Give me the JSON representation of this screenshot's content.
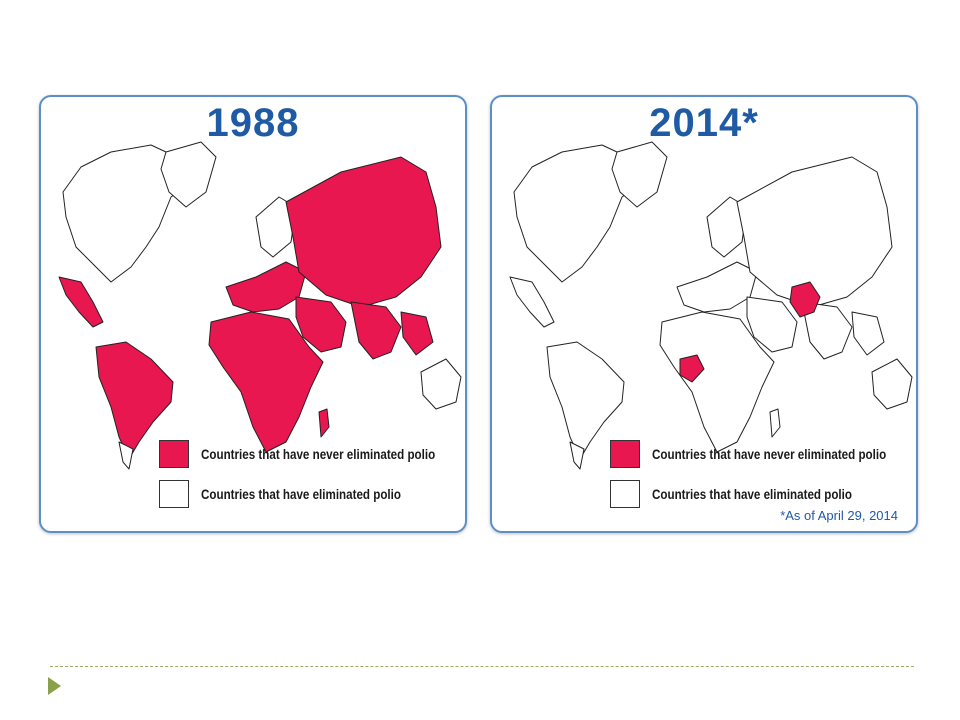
{
  "colors": {
    "never_eliminated": "#e8174f",
    "eliminated": "#ffffff",
    "title": "#1f5aa5",
    "panel_border": "#5b8fc8",
    "accent": "#8aa04a"
  },
  "panels": [
    {
      "title": "1988",
      "legend": {
        "never_eliminated": "Countries that have never eliminated polio",
        "eliminated": "Countries that have eliminated polio"
      },
      "footnote": ""
    },
    {
      "title": "2014*",
      "legend": {
        "never_eliminated": "Countries that have never eliminated polio",
        "eliminated": "Countries that have eliminated polio"
      },
      "footnote": "*As of April 29, 2014"
    }
  ],
  "map_regions": {
    "1988_never_eliminated": [
      "Mexico",
      "Central America",
      "South America",
      "Africa",
      "Europe (parts)",
      "Middle East",
      "Russia / USSR",
      "Asia",
      "Indonesia"
    ],
    "2014_never_eliminated": [
      "Nigeria",
      "Pakistan",
      "Afghanistan"
    ]
  },
  "icons": [
    "slide-bullet-triangle-icon"
  ]
}
